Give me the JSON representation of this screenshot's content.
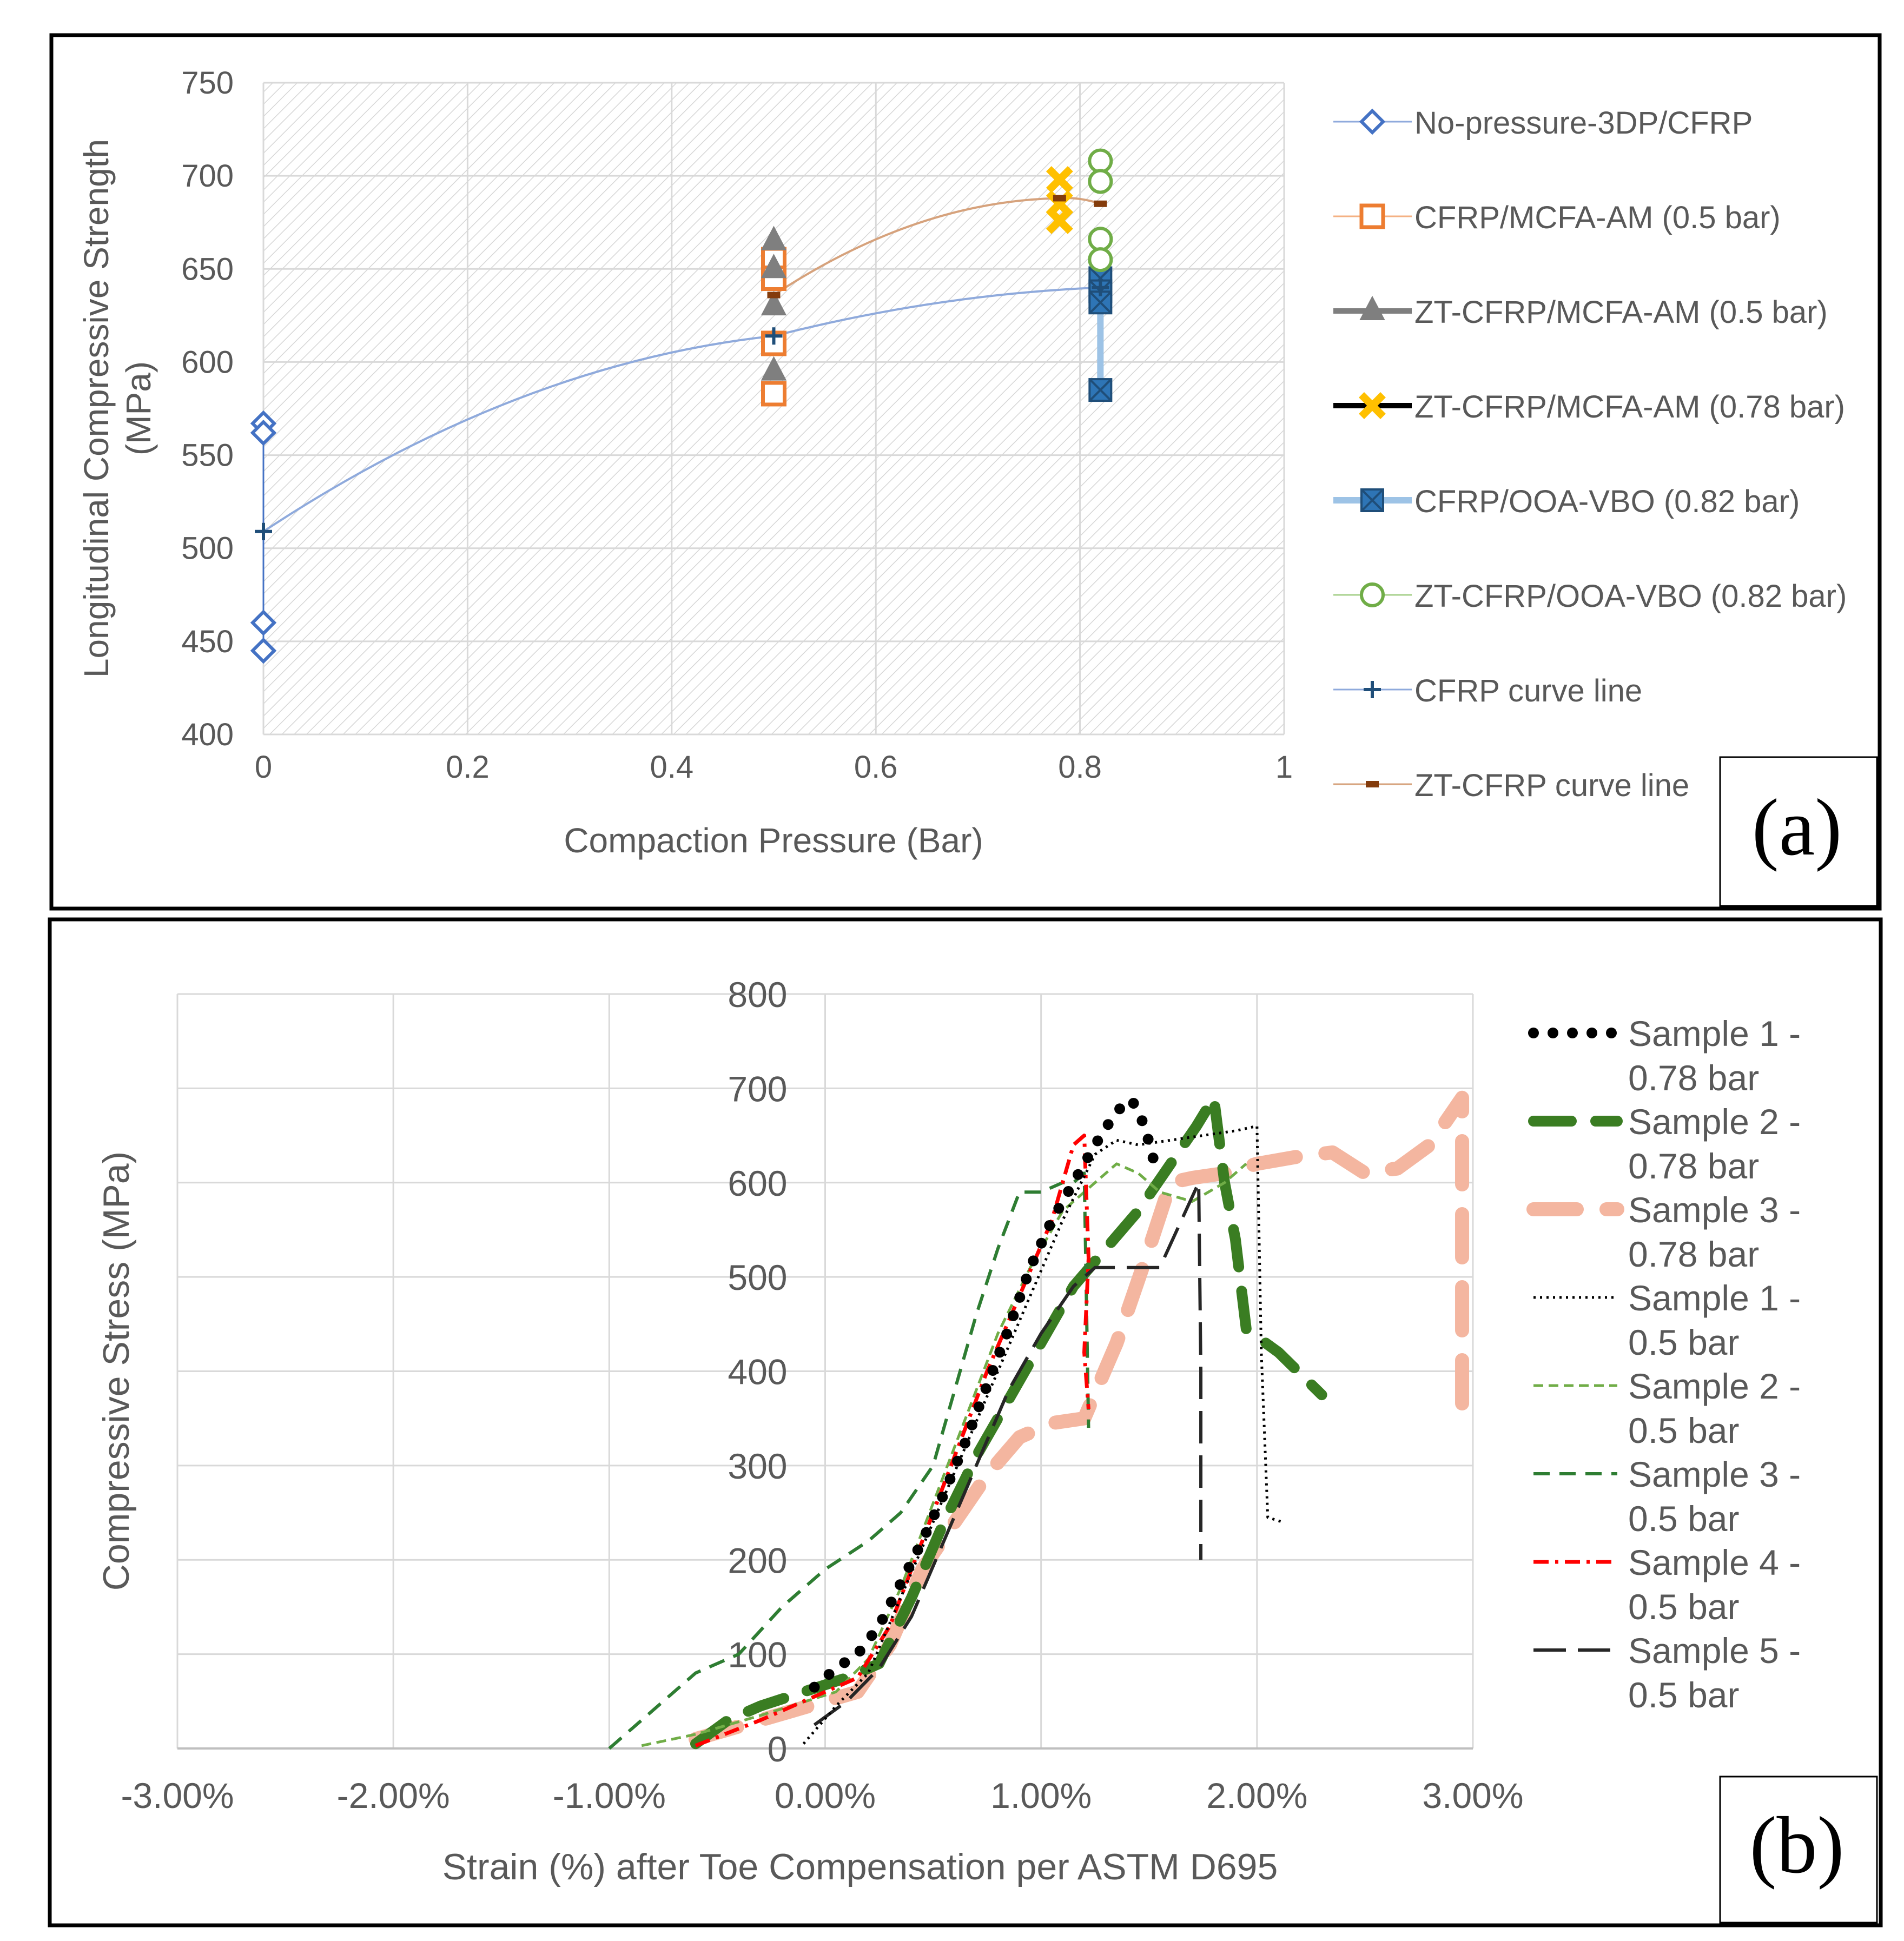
{
  "chart_data": [
    {
      "panel": "(a)",
      "type": "scatter",
      "title": "",
      "xlabel": "Compaction Pressure (Bar)",
      "ylabel": "Longitudinal Compressive Strength (MPa)",
      "xlim": [
        0,
        1
      ],
      "ylim": [
        400,
        750
      ],
      "x_ticks": [
        "0",
        "0.2",
        "0.4",
        "0.6",
        "0.8",
        "1"
      ],
      "y_ticks": [
        "400",
        "450",
        "500",
        "550",
        "600",
        "650",
        "700",
        "750"
      ],
      "grid": true,
      "legend_position": "right",
      "series": [
        {
          "name": "No-pressure-3DP/CFRP",
          "marker": "diamond-open",
          "color": "#4472c4",
          "x": [
            0,
            0,
            0,
            0
          ],
          "y": [
            567,
            562,
            460,
            445
          ]
        },
        {
          "name": "CFRP/MCFA-AM (0.5 bar)",
          "marker": "square-open",
          "color": "#ed7d31",
          "x": [
            0.5,
            0.5,
            0.5,
            0.5
          ],
          "y": [
            655,
            645,
            610,
            583
          ]
        },
        {
          "name": "ZT-CFRP/MCFA-AM (0.5 bar)",
          "marker": "triangle",
          "color": "#7f7f7f",
          "x": [
            0.5,
            0.5,
            0.5,
            0.5
          ],
          "y": [
            665,
            650,
            630,
            595
          ]
        },
        {
          "name": "ZT-CFRP/MCFA-AM (0.78 bar)",
          "marker": "x",
          "color": "#ffc000",
          "x": [
            0.78,
            0.78,
            0.78
          ],
          "y": [
            698,
            685,
            676
          ]
        },
        {
          "name": "CFRP/OOA-VBO (0.82 bar)",
          "marker": "square-x",
          "color": "#2e75b6",
          "x": [
            0.82,
            0.82,
            0.82,
            0.82
          ],
          "y": [
            645,
            638,
            632,
            585
          ]
        },
        {
          "name": "ZT-CFRP/OOA-VBO (0.82 bar)",
          "marker": "circle-open",
          "color": "#70ad47",
          "x": [
            0.82,
            0.82,
            0.82,
            0.82
          ],
          "y": [
            708,
            697,
            666,
            655
          ]
        },
        {
          "name": "CFRP curve line",
          "marker": "plus",
          "color": "#1f4e79",
          "x": [
            0,
            0.5,
            0.82
          ],
          "y": [
            509,
            614,
            640
          ]
        },
        {
          "name": "ZT-CFRP curve line",
          "marker": "dash",
          "color": "#843c0c",
          "x": [
            0.5,
            0.78,
            0.82
          ],
          "y": [
            636,
            688,
            685
          ]
        }
      ]
    },
    {
      "panel": "(b)",
      "type": "line",
      "title": "",
      "xlabel": "Strain (%) after Toe Compensation per ASTM D695",
      "ylabel": "Compressive Stress (MPa)",
      "xlim": [
        -3,
        3
      ],
      "ylim": [
        0,
        800
      ],
      "x_ticks": [
        "-3.00%",
        "-2.00%",
        "-1.00%",
        "0.00%",
        "1.00%",
        "2.00%",
        "3.00%"
      ],
      "y_ticks": [
        "0",
        "100",
        "200",
        "300",
        "400",
        "500",
        "600",
        "700",
        "800"
      ],
      "grid": true,
      "legend_position": "right",
      "series": [
        {
          "name": "Sample 1 - 0.78 bar",
          "style": "round-dot-thick",
          "color": "#000000",
          "x": [
            -0.05,
            0.05,
            0.15,
            0.25,
            0.35,
            0.45,
            0.55,
            0.65,
            0.75,
            0.85,
            0.95,
            1.05,
            1.15,
            1.25,
            1.32,
            1.38,
            1.42,
            1.48,
            1.52
          ],
          "y": [
            65,
            85,
            100,
            130,
            175,
            220,
            270,
            325,
            385,
            445,
            510,
            560,
            600,
            640,
            665,
            683,
            688,
            660,
            625
          ]
        },
        {
          "name": "Sample 2 - 0.78 bar",
          "style": "long-dash-thick",
          "color": "#3a7d22",
          "x": [
            -0.6,
            -0.45,
            -0.3,
            -0.1,
            0.1,
            0.25,
            0.4,
            0.55,
            0.7,
            0.85,
            1.0,
            1.15,
            1.3,
            1.45,
            1.6,
            1.72,
            1.8,
            1.85,
            1.9,
            1.95,
            2.1,
            2.3
          ],
          "y": [
            5,
            30,
            45,
            60,
            75,
            90,
            160,
            240,
            310,
            370,
            430,
            490,
            530,
            570,
            620,
            660,
            690,
            600,
            540,
            445,
            420,
            375
          ]
        },
        {
          "name": "Sample 3 - 0.78 bar",
          "style": "dash-heavy",
          "color": "#f4b6a0",
          "x": [
            -0.6,
            -0.3,
            0.0,
            0.15,
            0.3,
            0.45,
            0.6,
            0.75,
            0.9,
            1.05,
            1.2,
            1.35,
            1.5,
            1.6,
            1.7,
            1.85,
            2.0,
            2.2,
            2.35,
            2.5,
            2.65,
            2.8,
            2.95,
            2.95,
            2.95
          ],
          "y": [
            10,
            30,
            50,
            60,
            110,
            190,
            240,
            290,
            330,
            345,
            350,
            430,
            530,
            600,
            605,
            610,
            620,
            628,
            632,
            610,
            615,
            640,
            690,
            520,
            360
          ]
        },
        {
          "name": "Sample 1 - 0.5 bar",
          "style": "dotted-thin",
          "color": "#000000",
          "x": [
            -0.1,
            0.05,
            0.2,
            0.35,
            0.5,
            0.65,
            0.8,
            0.95,
            1.1,
            1.25,
            1.35,
            1.45,
            1.6,
            1.75,
            1.9,
            2.0,
            2.02,
            2.05,
            2.12
          ],
          "y": [
            5,
            45,
            80,
            160,
            240,
            320,
            400,
            480,
            560,
            630,
            645,
            640,
            645,
            650,
            655,
            660,
            420,
            245,
            240
          ]
        },
        {
          "name": "Sample 2 - 0.5 bar",
          "style": "short-dash-thin",
          "color": "#70ad47",
          "x": [
            -0.85,
            -0.6,
            -0.3,
            0.05,
            0.2,
            0.35,
            0.5,
            0.65,
            0.8,
            0.95,
            1.1,
            1.25,
            1.35,
            1.45,
            1.55,
            1.7,
            1.85,
            1.95
          ],
          "y": [
            3,
            15,
            35,
            60,
            95,
            170,
            260,
            350,
            440,
            510,
            570,
            600,
            620,
            610,
            590,
            580,
            600,
            620
          ]
        },
        {
          "name": "Sample 3 - 0.5 bar",
          "style": "medium-dash",
          "color": "#2e7d32",
          "x": [
            -1.0,
            -0.8,
            -0.6,
            -0.4,
            -0.2,
            0.0,
            0.2,
            0.35,
            0.5,
            0.6,
            0.7,
            0.8,
            0.9,
            1.0,
            1.1,
            1.15,
            1.2,
            1.22
          ],
          "y": [
            0,
            40,
            80,
            100,
            150,
            190,
            220,
            250,
            300,
            380,
            460,
            530,
            590,
            590,
            600,
            600,
            610,
            340
          ]
        },
        {
          "name": "Sample 4 - 0.5 bar",
          "style": "dash-dot",
          "color": "#ff0000",
          "x": [
            -0.6,
            -0.3,
            0.0,
            0.15,
            0.3,
            0.45,
            0.6,
            0.75,
            0.9,
            1.05,
            1.15,
            1.2,
            1.22,
            1.2,
            1.22
          ],
          "y": [
            3,
            30,
            60,
            75,
            130,
            220,
            310,
            400,
            480,
            560,
            640,
            650,
            520,
            420,
            360
          ]
        },
        {
          "name": "Sample 5 - 0.5 bar",
          "style": "long-dash",
          "color": "#262626",
          "x": [
            -0.05,
            0.1,
            0.25,
            0.4,
            0.55,
            0.7,
            0.85,
            1.0,
            1.15,
            1.25,
            1.35,
            1.45,
            1.55,
            1.65,
            1.73,
            1.74,
            1.74
          ],
          "y": [
            25,
            50,
            85,
            140,
            220,
            300,
            380,
            440,
            490,
            510,
            510,
            510,
            510,
            560,
            600,
            400,
            200
          ]
        }
      ]
    }
  ]
}
